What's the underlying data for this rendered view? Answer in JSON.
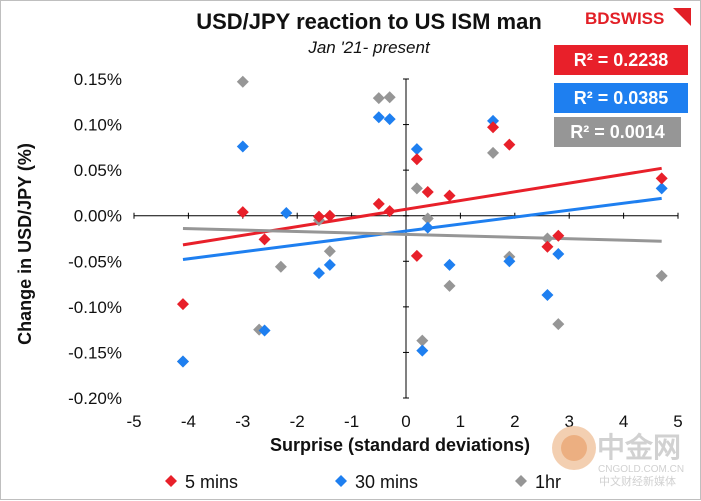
{
  "brand": {
    "name": "BDSWISS",
    "color": "#e21f26"
  },
  "watermark": {
    "logo_text": "中金网",
    "sub_text": "CNGOLD.COM.CN",
    "footer_text": "中文财经新媒体"
  },
  "chart_data": {
    "type": "scatter",
    "title": "USD/JPY reaction to US ISM man",
    "subtitle": "Jan '21- present",
    "xlabel": "Surprise (standard deviations)",
    "ylabel": "Change in USD/JPY  (%)",
    "xlim": [
      -5,
      5
    ],
    "ylim": [
      -0.2,
      0.15
    ],
    "x_ticks": [
      -5,
      -4,
      -3,
      -2,
      -1,
      0,
      1,
      2,
      3,
      4,
      5
    ],
    "y_ticks": [
      0.15,
      0.1,
      0.05,
      0.0,
      -0.05,
      -0.1,
      -0.15,
      -0.2
    ],
    "x_tick_labels": [
      "-5",
      "-4",
      "-3",
      "-2",
      "-1",
      "0",
      "1",
      "2",
      "3",
      "4",
      "5"
    ],
    "y_tick_labels": [
      "0.15%",
      "0.10%",
      "0.05%",
      "0.00%",
      "-0.05%",
      "-0.10%",
      "-0.15%",
      "-0.20%"
    ],
    "series": [
      {
        "name": "5 mins",
        "legend_label": "5 mins",
        "color": "#e8202a",
        "r2_label": "R² = 0.2238",
        "trend": [
          [
            -4.1,
            -0.032
          ],
          [
            4.7,
            0.052
          ]
        ],
        "points": [
          [
            -4.1,
            -0.097
          ],
          [
            -3.0,
            0.004
          ],
          [
            -2.6,
            -0.026
          ],
          [
            -1.6,
            -0.001
          ],
          [
            -1.4,
            0.0
          ],
          [
            -0.5,
            0.013
          ],
          [
            -0.3,
            0.005
          ],
          [
            0.2,
            0.062
          ],
          [
            0.4,
            0.026
          ],
          [
            0.2,
            -0.044
          ],
          [
            0.8,
            0.022
          ],
          [
            1.6,
            0.097
          ],
          [
            1.9,
            0.078
          ],
          [
            2.6,
            -0.034
          ],
          [
            2.8,
            -0.022
          ],
          [
            4.7,
            0.041
          ]
        ]
      },
      {
        "name": "30 mins",
        "legend_label": "30 mins",
        "color": "#1e7ff0",
        "r2_label": "R² = 0.0385",
        "trend": [
          [
            -4.1,
            -0.048
          ],
          [
            4.7,
            0.019
          ]
        ],
        "points": [
          [
            -4.1,
            -0.16
          ],
          [
            -3.0,
            0.076
          ],
          [
            -2.6,
            -0.126
          ],
          [
            -2.2,
            0.003
          ],
          [
            -1.6,
            -0.063
          ],
          [
            -1.4,
            -0.054
          ],
          [
            -0.5,
            0.108
          ],
          [
            -0.3,
            0.106
          ],
          [
            0.2,
            0.073
          ],
          [
            0.4,
            -0.013
          ],
          [
            0.8,
            -0.054
          ],
          [
            1.6,
            0.104
          ],
          [
            1.9,
            -0.05
          ],
          [
            0.3,
            -0.148
          ],
          [
            2.6,
            -0.087
          ],
          [
            2.8,
            -0.042
          ],
          [
            4.7,
            0.03
          ]
        ]
      },
      {
        "name": "1hr",
        "legend_label": "1hr",
        "color": "#969696",
        "r2_label": "R² = 0.0014",
        "trend": [
          [
            -4.1,
            -0.014
          ],
          [
            4.7,
            -0.028
          ]
        ],
        "points": [
          [
            -4.1,
            -0.16
          ],
          [
            -3.0,
            0.147
          ],
          [
            -2.7,
            -0.125
          ],
          [
            -2.3,
            -0.056
          ],
          [
            -1.6,
            -0.005
          ],
          [
            -1.4,
            -0.039
          ],
          [
            -0.5,
            0.129
          ],
          [
            -0.3,
            0.13
          ],
          [
            0.2,
            0.03
          ],
          [
            0.4,
            -0.003
          ],
          [
            0.3,
            -0.137
          ],
          [
            0.8,
            -0.077
          ],
          [
            1.6,
            0.069
          ],
          [
            1.9,
            -0.045
          ],
          [
            2.6,
            -0.025
          ],
          [
            2.8,
            -0.119
          ],
          [
            4.7,
            -0.066
          ]
        ]
      }
    ],
    "legend_position": "bottom"
  }
}
